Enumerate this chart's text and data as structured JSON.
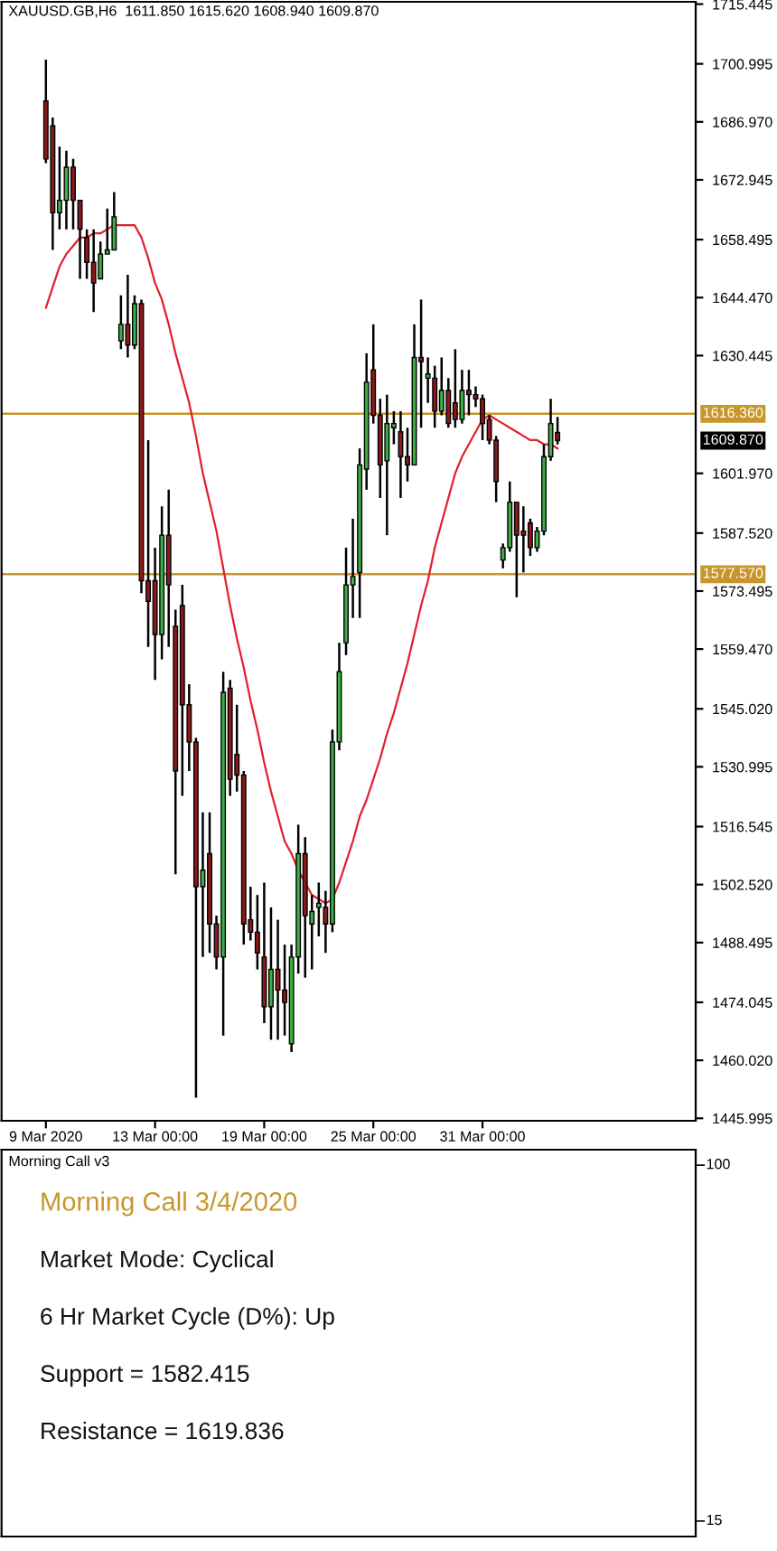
{
  "chart_data": [
    {
      "type": "candlestick",
      "title": "XAUUSD.GB,H6  1611.850 1615.620 1608.940 1609.870",
      "categories": [
        "9 Mar 2020",
        null,
        null,
        null,
        null,
        null,
        null,
        null,
        null,
        null,
        null,
        null,
        null,
        null,
        null,
        null,
        "13 Mar 00:00",
        null,
        null,
        null,
        null,
        null,
        null,
        null,
        null,
        null,
        null,
        null,
        null,
        null,
        null,
        null,
        "19 Mar 00:00",
        null,
        null,
        null,
        null,
        null,
        null,
        null,
        null,
        null,
        null,
        null,
        null,
        null,
        null,
        null,
        "25 Mar 00:00",
        null,
        null,
        null,
        null,
        null,
        null,
        null,
        null,
        null,
        null,
        null,
        null,
        null,
        null,
        null,
        "31 Mar 00:00",
        null,
        null,
        null,
        null,
        null,
        null,
        null,
        null,
        null,
        null,
        null
      ],
      "ohlc": [
        [
          1692,
          1702,
          1677,
          1678
        ],
        [
          1686,
          1688,
          1656,
          1665
        ],
        [
          1665,
          1681,
          1661,
          1668
        ],
        [
          1668,
          1680,
          1661,
          1676
        ],
        [
          1676,
          1678,
          1661,
          1668
        ],
        [
          1668,
          1668,
          1649,
          1661
        ],
        [
          1659,
          1661,
          1649,
          1653
        ],
        [
          1653,
          1661,
          1641,
          1648
        ],
        [
          1649,
          1658,
          1649,
          1655
        ],
        [
          1655,
          1666,
          1655,
          1656
        ],
        [
          1656,
          1670,
          1656,
          1664
        ],
        [
          1634,
          1645,
          1632,
          1638
        ],
        [
          1638,
          1650,
          1630,
          1633
        ],
        [
          1633,
          1645,
          1632,
          1643
        ],
        [
          1643,
          1644,
          1573,
          1576
        ],
        [
          1576,
          1610,
          1560,
          1571
        ],
        [
          1576,
          1584,
          1552,
          1563
        ],
        [
          1563,
          1594,
          1557,
          1587
        ],
        [
          1587,
          1598,
          1560,
          1575
        ],
        [
          1565,
          1569,
          1505,
          1530
        ],
        [
          1570,
          1575,
          1524,
          1546
        ],
        [
          1546,
          1551,
          1530,
          1537
        ],
        [
          1537,
          1538,
          1451,
          1502
        ],
        [
          1502,
          1520,
          1485,
          1506
        ],
        [
          1510,
          1520,
          1486,
          1493
        ],
        [
          1493,
          1495,
          1482,
          1485
        ],
        [
          1485,
          1554,
          1466,
          1549
        ],
        [
          1550,
          1552,
          1524,
          1528
        ],
        [
          1534,
          1546,
          1525,
          1529
        ],
        [
          1529,
          1530,
          1488,
          1493
        ],
        [
          1494,
          1502,
          1489,
          1491
        ],
        [
          1491,
          1500,
          1482,
          1486
        ],
        [
          1485,
          1503,
          1469,
          1473
        ],
        [
          1473,
          1497,
          1465,
          1482
        ],
        [
          1482,
          1494,
          1465,
          1477
        ],
        [
          1477,
          1488,
          1466,
          1474
        ],
        [
          1464,
          1488,
          1462,
          1485
        ],
        [
          1485,
          1517,
          1481,
          1510
        ],
        [
          1510,
          1514,
          1480,
          1495
        ],
        [
          1493,
          1500,
          1482,
          1496
        ],
        [
          1497,
          1503,
          1490,
          1498
        ],
        [
          1497,
          1501,
          1486,
          1493
        ],
        [
          1493,
          1540,
          1491,
          1537
        ],
        [
          1537,
          1561,
          1535,
          1554
        ],
        [
          1561,
          1584,
          1558,
          1575
        ],
        [
          1575,
          1591,
          1567,
          1577
        ],
        [
          1578,
          1608,
          1567,
          1604
        ],
        [
          1603,
          1631,
          1598,
          1624
        ],
        [
          1627,
          1638,
          1614,
          1616
        ],
        [
          1616,
          1620,
          1596,
          1604
        ],
        [
          1605,
          1621,
          1587,
          1614
        ],
        [
          1613,
          1617,
          1609,
          1614
        ],
        [
          1612,
          1617,
          1596,
          1606
        ],
        [
          1606,
          1613,
          1600,
          1604
        ],
        [
          1604,
          1638,
          1604,
          1630
        ],
        [
          1630,
          1644,
          1613,
          1629
        ],
        [
          1625,
          1630,
          1619,
          1626
        ],
        [
          1625,
          1628,
          1613,
          1617
        ],
        [
          1617,
          1630,
          1616,
          1622
        ],
        [
          1622,
          1625,
          1613,
          1614
        ],
        [
          1619,
          1632,
          1613,
          1615
        ],
        [
          1615,
          1627,
          1614,
          1622
        ],
        [
          1622,
          1627,
          1616,
          1621
        ],
        [
          1621,
          1623,
          1618,
          1620
        ],
        [
          1620,
          1621,
          1610,
          1614
        ],
        [
          1615,
          1616,
          1609,
          1610
        ],
        [
          1610,
          1611,
          1595,
          1600
        ],
        [
          1581,
          1585,
          1579,
          1584
        ],
        [
          1584,
          1600,
          1583,
          1595
        ],
        [
          1595,
          1595,
          1572,
          1587
        ],
        [
          1588,
          1594,
          1578,
          1587
        ],
        [
          1590,
          1591,
          1582,
          1584
        ],
        [
          1584,
          1589,
          1583,
          1588
        ],
        [
          1588,
          1609,
          1587,
          1606
        ],
        [
          1606,
          1620,
          1605,
          1614
        ],
        [
          1611.85,
          1615.62,
          1608.94,
          1609.87
        ]
      ],
      "series": [
        {
          "type": "line",
          "color": "#e0202a",
          "values": [
            1642,
            1647,
            1652,
            1655,
            1657,
            1659,
            1659,
            1660,
            1660,
            1661,
            1662,
            1662,
            1662,
            1662,
            1659,
            1654,
            1648,
            1644,
            1638,
            1631,
            1625,
            1619,
            1611,
            1602,
            1595,
            1588,
            1579,
            1570,
            1562,
            1555,
            1547,
            1540,
            1532,
            1525,
            1519,
            1513,
            1510,
            1506,
            1503,
            1500,
            1499,
            1498,
            1499,
            1503,
            1508,
            1513,
            1519,
            1523,
            1528,
            1533,
            1539,
            1544,
            1550,
            1556,
            1563,
            1570,
            1576,
            1584,
            1590,
            1596,
            1602,
            1606,
            1609,
            1612,
            1615,
            1616,
            1615,
            1614,
            1613,
            1612,
            1611,
            1610,
            1610,
            1609,
            1609,
            1608
          ]
        }
      ],
      "ylim": [
        1445.4,
        1716.0
      ],
      "yticks": [
        1715.445,
        1700.995,
        {
          "value": 1686.97,
          "label": "1686.970"
        },
        1672.945,
        1658.495,
        {
          "value": 1644.47,
          "label": "1644.470"
        },
        1630.445,
        {
          "value": 1601.97,
          "label": "1601.970"
        },
        {
          "value": 1587.52,
          "label": "1587.520"
        },
        1573.495,
        {
          "value": 1559.47,
          "label": "1559.470"
        },
        {
          "value": 1545.02,
          "label": "1545.020"
        },
        1530.995,
        1516.545,
        {
          "value": 1502.52,
          "label": "1502.520"
        },
        1488.495,
        1474.045,
        {
          "value": 1460.02,
          "label": "1460.020"
        },
        1445.995
      ],
      "ref_lines": [
        {
          "axis": "y",
          "value": 1616.36,
          "label": "1616.360",
          "color": "#c8962a"
        },
        {
          "axis": "y",
          "value": 1577.57,
          "label": "1577.570",
          "color": "#c8962a"
        }
      ],
      "annotations": [
        "1609.870"
      ]
    },
    {
      "type": "other",
      "title": "Morning Call v3",
      "annotations": [
        "Morning Call 3/4/2020",
        "Market Mode: Cyclical",
        "6 Hr Market Cycle (D%): Up",
        "Support = 1582.415",
        "Resistance = 1619.836",
        "100",
        "15"
      ]
    }
  ]
}
